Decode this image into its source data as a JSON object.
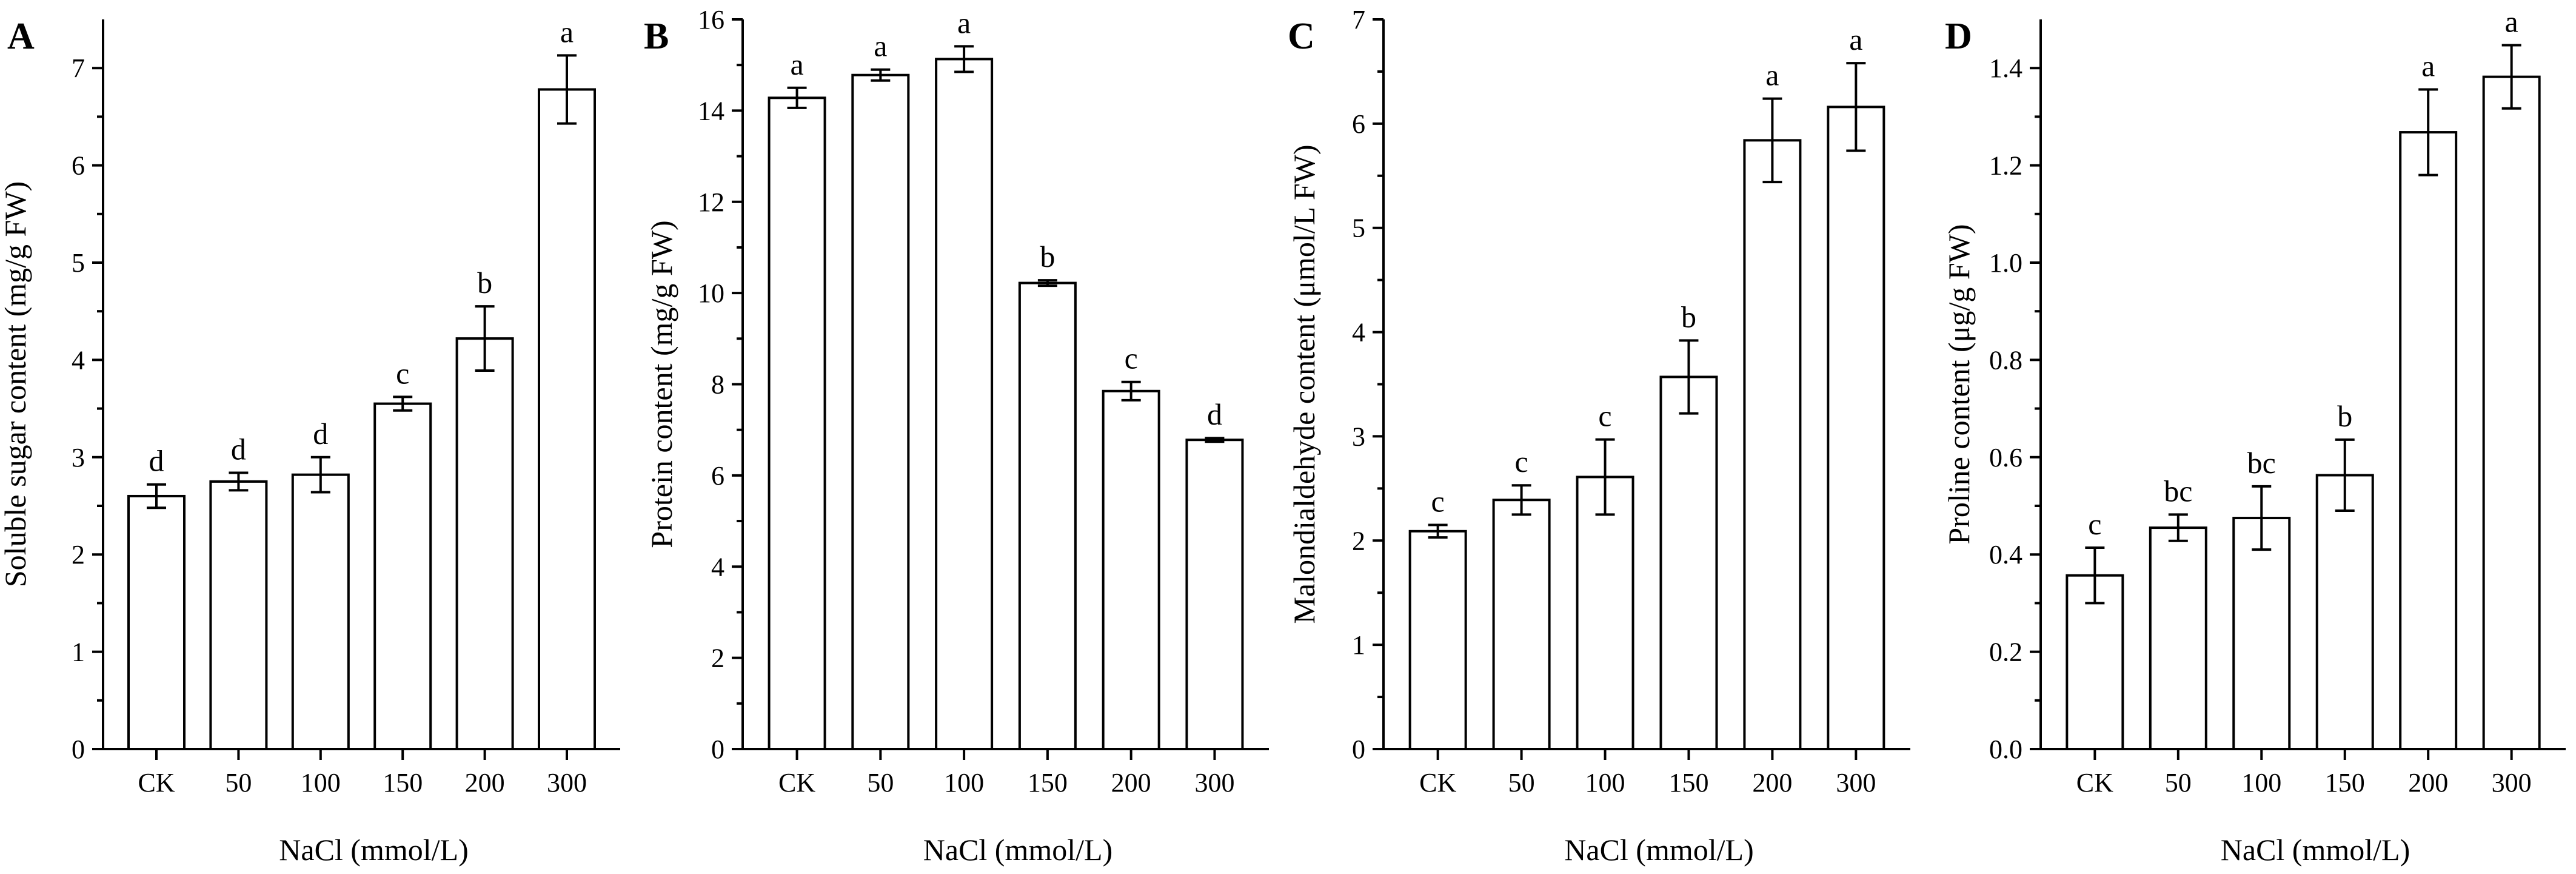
{
  "figure": {
    "xlabel": "NaCl (mmol/L)"
  },
  "chart_data": [
    {
      "type": "bar",
      "panel_label": "A",
      "title": "",
      "xlabel": "NaCl (mmol/L)",
      "ylabel": "Soluble sugar content (mg/g FW)",
      "categories": [
        "CK",
        "50",
        "100",
        "150",
        "200",
        "300"
      ],
      "values": [
        2.6,
        2.75,
        2.82,
        3.55,
        4.22,
        6.78
      ],
      "errors": [
        0.12,
        0.09,
        0.18,
        0.07,
        0.33,
        0.35
      ],
      "significance_letters": [
        "d",
        "d",
        "d",
        "c",
        "b",
        "a"
      ],
      "ylim": [
        0,
        7.5
      ],
      "yticks": [
        0,
        1,
        2,
        3,
        4,
        5,
        6,
        7
      ],
      "ytick_labels": [
        "0",
        "1",
        "2",
        "3",
        "4",
        "5",
        "6",
        "7"
      ]
    },
    {
      "type": "bar",
      "panel_label": "B",
      "title": "",
      "xlabel": "NaCl (mmol/L)",
      "ylabel": "Protein content (mg/g FW)",
      "categories": [
        "CK",
        "50",
        "100",
        "150",
        "200",
        "300"
      ],
      "values": [
        14.28,
        14.78,
        15.13,
        10.22,
        7.85,
        6.78
      ],
      "errors": [
        0.22,
        0.12,
        0.28,
        0.06,
        0.2,
        0.04
      ],
      "significance_letters": [
        "a",
        "a",
        "a",
        "b",
        "c",
        "d"
      ],
      "ylim": [
        0,
        16
      ],
      "yticks": [
        0,
        2,
        4,
        6,
        8,
        10,
        12,
        14,
        16
      ],
      "ytick_labels": [
        "0",
        "2",
        "4",
        "6",
        "8",
        "10",
        "12",
        "14",
        "16"
      ]
    },
    {
      "type": "bar",
      "panel_label": "C",
      "title": "",
      "xlabel": "NaCl (mmol/L)",
      "ylabel": "Malondialdehyde content (μmol/L FW)",
      "categories": [
        "CK",
        "50",
        "100",
        "150",
        "200",
        "300"
      ],
      "values": [
        2.09,
        2.39,
        2.61,
        3.57,
        5.84,
        6.16
      ],
      "errors": [
        0.06,
        0.14,
        0.36,
        0.35,
        0.4,
        0.42
      ],
      "significance_letters": [
        "c",
        "c",
        "c",
        "b",
        "a",
        "a"
      ],
      "ylim": [
        0,
        7
      ],
      "yticks": [
        0,
        1,
        2,
        3,
        4,
        5,
        6,
        7
      ],
      "ytick_labels": [
        "0",
        "1",
        "2",
        "3",
        "4",
        "5",
        "6",
        "7"
      ]
    },
    {
      "type": "bar",
      "panel_label": "D",
      "title": "",
      "xlabel": "NaCl (mmol/L)",
      "ylabel": "Proline content (μg/g FW)",
      "categories": [
        "CK",
        "50",
        "100",
        "150",
        "200",
        "300"
      ],
      "values": [
        0.357,
        0.455,
        0.475,
        0.563,
        1.268,
        1.382
      ],
      "errors": [
        0.057,
        0.027,
        0.065,
        0.073,
        0.088,
        0.065
      ],
      "significance_letters": [
        "c",
        "bc",
        "bc",
        "b",
        "a",
        "a"
      ],
      "ylim": [
        0,
        1.5
      ],
      "yticks": [
        0,
        0.2,
        0.4,
        0.6,
        0.8,
        1.0,
        1.2,
        1.4
      ],
      "ytick_labels": [
        "0.0",
        "0.2",
        "0.4",
        "0.6",
        "0.8",
        "1.0",
        "1.2",
        "1.4"
      ]
    }
  ]
}
